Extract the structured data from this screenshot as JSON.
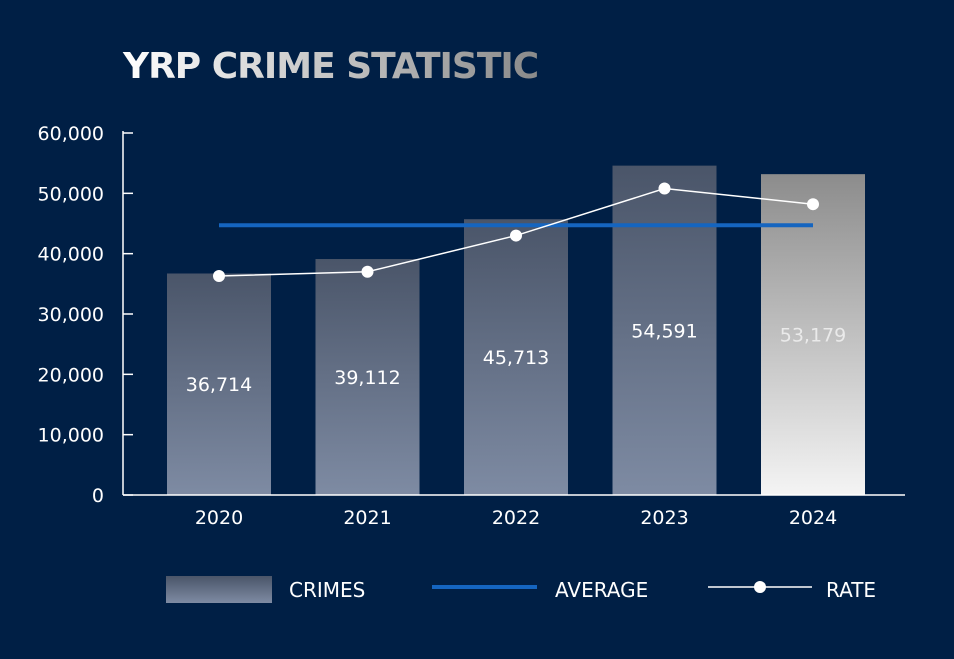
{
  "colors": {
    "background": "#001f45",
    "bar_top": "#4a5569",
    "bar_bottom": "#7e8ba3",
    "highlight_top": "#8c8c8c",
    "highlight_bottom": "#f4f4f4",
    "average_line": "#1565c0",
    "rate_line": "#ffffff",
    "axis": "#ffffff",
    "text": "#ffffff",
    "title_start": "#ffffff",
    "title_end": "#8a8a8a"
  },
  "chart_data": {
    "type": "bar",
    "title": "YRP CRIME STATISTIC",
    "categories": [
      "2020",
      "2021",
      "2022",
      "2023",
      "2024"
    ],
    "series": [
      {
        "name": "CRIMES",
        "kind": "bar",
        "values": [
          36714,
          39112,
          45713,
          54591,
          53179
        ]
      },
      {
        "name": "AVERAGE",
        "kind": "line",
        "values": [
          44700,
          44700,
          44700,
          44700,
          44700
        ]
      },
      {
        "name": "RATE",
        "kind": "line-markers",
        "values": [
          36300,
          37000,
          43000,
          50800,
          48200
        ]
      }
    ],
    "data_labels": [
      "36,714",
      "39,112",
      "45,713",
      "54,591",
      "53,179"
    ],
    "highlight_category": "2024",
    "ylim": [
      0,
      60000
    ],
    "yticks": [
      0,
      10000,
      20000,
      30000,
      40000,
      50000,
      60000
    ],
    "ytick_labels": [
      "0",
      "10,000",
      "20,000",
      "30,000",
      "40,000",
      "50,000",
      "60,000"
    ],
    "grid": false,
    "legend_position": "bottom",
    "legend": [
      "CRIMES",
      "AVERAGE",
      "RATE"
    ]
  }
}
